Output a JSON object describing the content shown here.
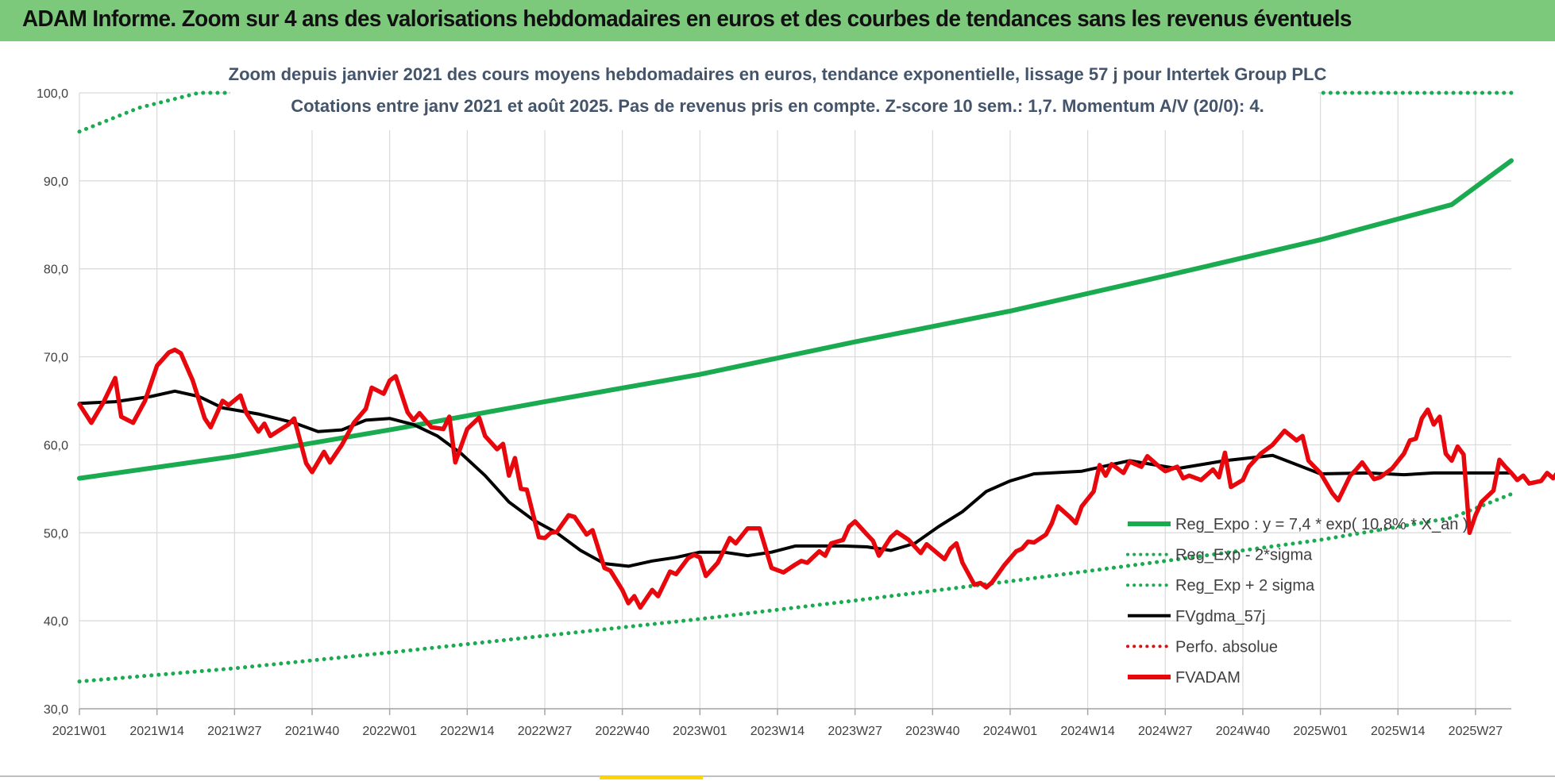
{
  "banner": {
    "title": "ADAM Informe. Zoom sur 4 ans des valorisations hebdomadaires en euros et des courbes de tendances sans les revenus éventuels"
  },
  "colors": {
    "banner_bg": "#7cc97c",
    "trend_green": "#1aaa4f",
    "price_red": "#e8070c",
    "smooth_black": "#000000",
    "grid": "#d9d9d9"
  },
  "chart_data": {
    "type": "line",
    "subtitle_line1": "Zoom depuis janvier 2021 des cours moyens hebdomadaires en euros, tendance exponentielle, lissage 57 j pour Intertek Group PLC",
    "subtitle_line2": "Cotations entre janv 2021 et août 2025.  Pas de revenus pris en compte. Z-score 10 sem.: 1,7. Momentum A/V (20/0): 4.",
    "ylim": [
      30,
      100
    ],
    "y_ticks": [
      "30,0",
      "40,0",
      "50,0",
      "60,0",
      "70,0",
      "80,0",
      "90,0",
      "100,0"
    ],
    "x_ticks": [
      "2021W01",
      "2021W14",
      "2021W27",
      "2021W40",
      "2022W01",
      "2022W14",
      "2022W27",
      "2022W40",
      "2023W01",
      "2023W14",
      "2023W27",
      "2023W40",
      "2024W01",
      "2024W14",
      "2024W27",
      "2024W40",
      "2025W01",
      "2025W14",
      "2025W27"
    ],
    "x_range_weeks": [
      0,
      240
    ],
    "legend_position": "lower-right",
    "legend": [
      {
        "name": "Reg_Expo : y = 7,4 * exp( 10,8% *  X_an )",
        "style": "solid-thick",
        "color": "#1aaa4f"
      },
      {
        "name": "Reg_Exp - 2*sigma",
        "style": "dotted",
        "color": "#1aaa4f"
      },
      {
        "name": "Reg_Exp + 2 sigma",
        "style": "dotted",
        "color": "#1aaa4f"
      },
      {
        "name": "FVgdma_57j",
        "style": "solid",
        "color": "#000000"
      },
      {
        "name": "Perfo. absolue",
        "style": "dotted",
        "color": "#e8070c"
      },
      {
        "name": "FVADAM",
        "style": "solid-thick",
        "color": "#e8070c"
      }
    ],
    "series": [
      {
        "key": "reg_expo",
        "points": [
          [
            0,
            56.2
          ],
          [
            26,
            58.7
          ],
          [
            52,
            61.7
          ],
          [
            78,
            64.9
          ],
          [
            104,
            68.0
          ],
          [
            130,
            71.7
          ],
          [
            156,
            75.2
          ],
          [
            182,
            79.2
          ],
          [
            208,
            83.3
          ],
          [
            230,
            87.3
          ],
          [
            240,
            92.3
          ]
        ]
      },
      {
        "key": "reg_minus",
        "points": [
          [
            0,
            33.1
          ],
          [
            26,
            34.6
          ],
          [
            52,
            36.4
          ],
          [
            78,
            38.3
          ],
          [
            104,
            40.2
          ],
          [
            130,
            42.3
          ],
          [
            156,
            44.5
          ],
          [
            182,
            46.8
          ],
          [
            208,
            49.2
          ],
          [
            230,
            51.7
          ],
          [
            240,
            54.4
          ]
        ]
      },
      {
        "key": "reg_plus",
        "points": [
          [
            0,
            95.6
          ],
          [
            10,
            98.3
          ],
          [
            20,
            100.0
          ],
          [
            240,
            100.0
          ]
        ]
      },
      {
        "key": "fvgdma",
        "points": [
          [
            0,
            64.7
          ],
          [
            6,
            64.9
          ],
          [
            12,
            65.5
          ],
          [
            16,
            66.1
          ],
          [
            20,
            65.5
          ],
          [
            24,
            64.2
          ],
          [
            30,
            63.5
          ],
          [
            36,
            62.5
          ],
          [
            40,
            61.5
          ],
          [
            44,
            61.7
          ],
          [
            48,
            62.8
          ],
          [
            52,
            63.0
          ],
          [
            56,
            62.3
          ],
          [
            60,
            61.0
          ],
          [
            64,
            59.0
          ],
          [
            68,
            56.5
          ],
          [
            72,
            53.5
          ],
          [
            76,
            51.5
          ],
          [
            80,
            50.0
          ],
          [
            84,
            48.0
          ],
          [
            88,
            46.5
          ],
          [
            92,
            46.2
          ],
          [
            96,
            46.8
          ],
          [
            100,
            47.2
          ],
          [
            104,
            47.8
          ],
          [
            108,
            47.8
          ],
          [
            112,
            47.4
          ],
          [
            116,
            47.8
          ],
          [
            120,
            48.5
          ],
          [
            124,
            48.5
          ],
          [
            128,
            48.5
          ],
          [
            132,
            48.4
          ],
          [
            136,
            48.0
          ],
          [
            140,
            48.8
          ],
          [
            144,
            50.7
          ],
          [
            148,
            52.4
          ],
          [
            152,
            54.7
          ],
          [
            156,
            55.9
          ],
          [
            160,
            56.7
          ],
          [
            168,
            57.0
          ],
          [
            176,
            58.2
          ],
          [
            184,
            57.3
          ],
          [
            192,
            58.2
          ],
          [
            200,
            58.8
          ],
          [
            208,
            56.7
          ],
          [
            216,
            56.8
          ],
          [
            222,
            56.6
          ],
          [
            227,
            56.8
          ],
          [
            230,
            56.8
          ],
          [
            240,
            56.8
          ]
        ]
      },
      {
        "key": "fvadam",
        "points": [
          [
            0,
            64.6
          ],
          [
            2,
            62.5
          ],
          [
            4,
            64.8
          ],
          [
            6,
            67.6
          ],
          [
            7,
            63.2
          ],
          [
            9,
            62.5
          ],
          [
            11,
            65.0
          ],
          [
            13,
            69.0
          ],
          [
            15,
            70.5
          ],
          [
            16,
            70.8
          ],
          [
            17,
            70.4
          ],
          [
            19,
            67.3
          ],
          [
            21,
            63.0
          ],
          [
            22,
            62.0
          ],
          [
            24,
            65.0
          ],
          [
            25,
            64.5
          ],
          [
            27,
            65.6
          ],
          [
            28,
            63.6
          ],
          [
            30,
            61.5
          ],
          [
            31,
            62.4
          ],
          [
            32,
            61.0
          ],
          [
            35,
            62.3
          ],
          [
            36,
            63.0
          ],
          [
            38,
            57.9
          ],
          [
            39,
            56.9
          ],
          [
            41,
            59.2
          ],
          [
            42,
            58.0
          ],
          [
            44,
            60.0
          ],
          [
            46,
            62.5
          ],
          [
            48,
            64.1
          ],
          [
            49,
            66.5
          ],
          [
            51,
            65.8
          ],
          [
            52,
            67.3
          ],
          [
            53,
            67.8
          ],
          [
            55,
            63.7
          ],
          [
            56,
            62.8
          ],
          [
            57,
            63.6
          ],
          [
            59,
            62.0
          ],
          [
            61,
            61.8
          ],
          [
            62,
            63.2
          ],
          [
            63,
            58.0
          ],
          [
            65,
            61.8
          ],
          [
            67,
            63.1
          ],
          [
            68,
            61.0
          ],
          [
            70,
            59.5
          ],
          [
            71,
            60.1
          ],
          [
            72,
            56.5
          ],
          [
            73,
            58.5
          ],
          [
            74,
            55.0
          ],
          [
            75,
            54.9
          ],
          [
            77,
            49.5
          ],
          [
            78,
            49.4
          ],
          [
            79,
            50.0
          ],
          [
            80,
            50.1
          ],
          [
            82,
            52.0
          ],
          [
            83,
            51.8
          ],
          [
            85,
            49.8
          ],
          [
            86,
            50.3
          ],
          [
            88,
            46.0
          ],
          [
            89,
            45.7
          ],
          [
            91,
            43.5
          ],
          [
            92,
            42.0
          ],
          [
            93,
            42.8
          ],
          [
            94,
            41.5
          ],
          [
            96,
            43.5
          ],
          [
            97,
            42.8
          ],
          [
            99,
            45.6
          ],
          [
            100,
            45.3
          ],
          [
            102,
            47.1
          ],
          [
            103,
            47.5
          ],
          [
            104,
            47.2
          ],
          [
            105,
            45.1
          ],
          [
            107,
            46.6
          ],
          [
            109,
            49.4
          ],
          [
            110,
            48.8
          ],
          [
            112,
            50.5
          ],
          [
            114,
            50.5
          ],
          [
            116,
            46.0
          ],
          [
            118,
            45.5
          ],
          [
            120,
            46.4
          ],
          [
            121,
            46.8
          ],
          [
            122,
            46.6
          ],
          [
            124,
            47.9
          ],
          [
            125,
            47.4
          ],
          [
            126,
            48.8
          ],
          [
            128,
            49.2
          ],
          [
            129,
            50.7
          ],
          [
            130,
            51.3
          ],
          [
            132,
            49.8
          ],
          [
            133,
            49.1
          ],
          [
            134,
            47.4
          ],
          [
            136,
            49.5
          ],
          [
            137,
            50.1
          ],
          [
            139,
            49.2
          ],
          [
            141,
            47.7
          ],
          [
            142,
            48.7
          ],
          [
            145,
            47.0
          ],
          [
            146,
            48.2
          ],
          [
            147,
            48.8
          ],
          [
            148,
            46.6
          ],
          [
            150,
            44.1
          ],
          [
            151,
            44.3
          ],
          [
            152,
            43.8
          ],
          [
            153,
            44.4
          ],
          [
            155,
            46.3
          ],
          [
            157,
            47.9
          ],
          [
            158,
            48.2
          ],
          [
            159,
            49.0
          ],
          [
            160,
            48.9
          ],
          [
            162,
            49.8
          ],
          [
            163,
            51.1
          ],
          [
            164,
            53.0
          ],
          [
            166,
            51.8
          ],
          [
            167,
            51.1
          ],
          [
            168,
            53.0
          ],
          [
            170,
            54.7
          ],
          [
            171,
            57.7
          ],
          [
            172,
            56.5
          ],
          [
            173,
            57.8
          ],
          [
            175,
            56.8
          ],
          [
            176,
            58.1
          ],
          [
            178,
            57.5
          ],
          [
            179,
            58.7
          ],
          [
            181,
            57.5
          ],
          [
            182,
            57.0
          ],
          [
            184,
            57.5
          ],
          [
            185,
            56.2
          ],
          [
            186,
            56.5
          ],
          [
            188,
            56.0
          ],
          [
            190,
            57.2
          ],
          [
            191,
            56.3
          ],
          [
            192,
            59.1
          ],
          [
            193,
            55.2
          ],
          [
            195,
            56.0
          ],
          [
            196,
            57.5
          ],
          [
            198,
            59.0
          ],
          [
            200,
            60.0
          ],
          [
            202,
            61.6
          ],
          [
            204,
            60.5
          ],
          [
            205,
            61.0
          ],
          [
            206,
            58.2
          ],
          [
            208,
            56.8
          ],
          [
            210,
            54.5
          ],
          [
            211,
            53.7
          ],
          [
            213,
            56.5
          ],
          [
            214,
            57.2
          ],
          [
            215,
            58.0
          ],
          [
            217,
            56.1
          ],
          [
            218,
            56.3
          ],
          [
            220,
            57.3
          ],
          [
            222,
            59.0
          ],
          [
            223,
            60.5
          ],
          [
            224,
            60.7
          ],
          [
            225,
            63.0
          ],
          [
            226,
            64.0
          ],
          [
            227,
            62.3
          ],
          [
            228,
            63.2
          ],
          [
            229,
            59.0
          ],
          [
            230,
            58.2
          ],
          [
            231,
            59.8
          ],
          [
            232,
            58.9
          ],
          [
            233,
            50.0
          ],
          [
            234,
            52.0
          ],
          [
            235,
            53.5
          ],
          [
            237,
            54.8
          ],
          [
            238,
            58.3
          ],
          [
            239,
            57.5
          ],
          [
            240,
            56.8
          ],
          [
            241,
            56.0
          ],
          [
            242,
            56.5
          ],
          [
            243,
            55.6
          ],
          [
            245,
            55.9
          ],
          [
            246,
            56.8
          ],
          [
            247,
            56.2
          ],
          [
            248,
            57.1
          ]
        ]
      }
    ]
  }
}
